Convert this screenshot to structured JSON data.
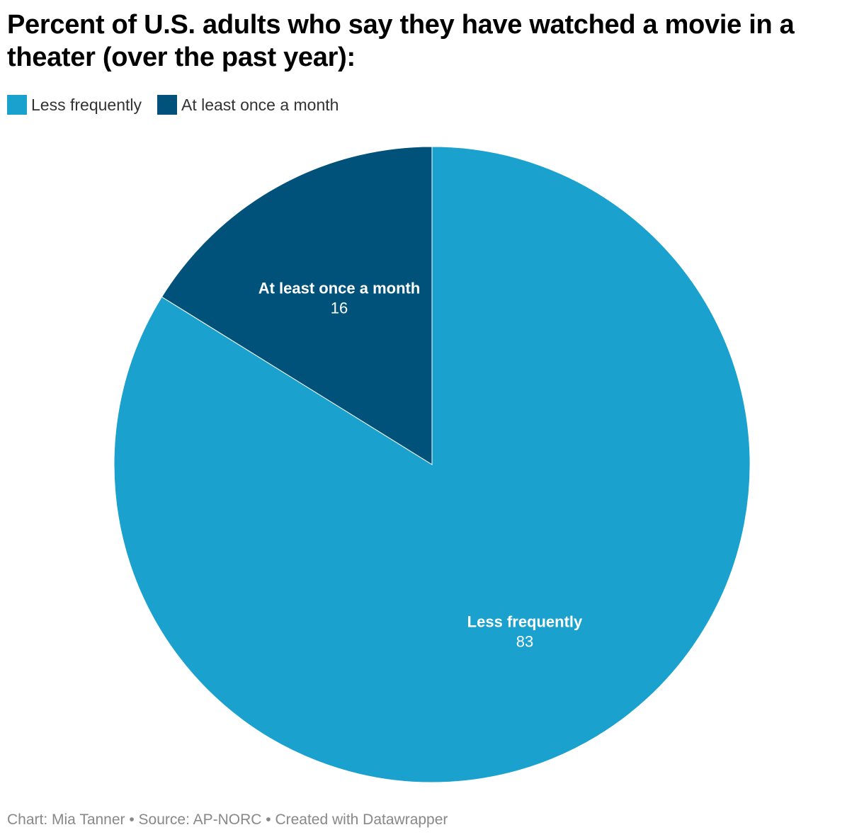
{
  "chart_data": {
    "type": "pie",
    "title": "Percent of U.S. adults who say they have watched a movie in a theater (over the past year):",
    "categories": [
      "Less frequently",
      "At least once a month"
    ],
    "values": [
      83,
      16
    ],
    "colors": [
      "#1aa1cd",
      "#01527a"
    ],
    "legend": {
      "placement": "top-left",
      "entries": [
        "Less frequently",
        "At least once a month"
      ]
    },
    "data_labels": [
      {
        "label": "Less frequently",
        "value": "83"
      },
      {
        "label": "At least once a month",
        "value": "16"
      }
    ]
  },
  "footer": {
    "text": "Chart: Mia Tanner • Source: AP-NORC • Created with Datawrapper"
  }
}
